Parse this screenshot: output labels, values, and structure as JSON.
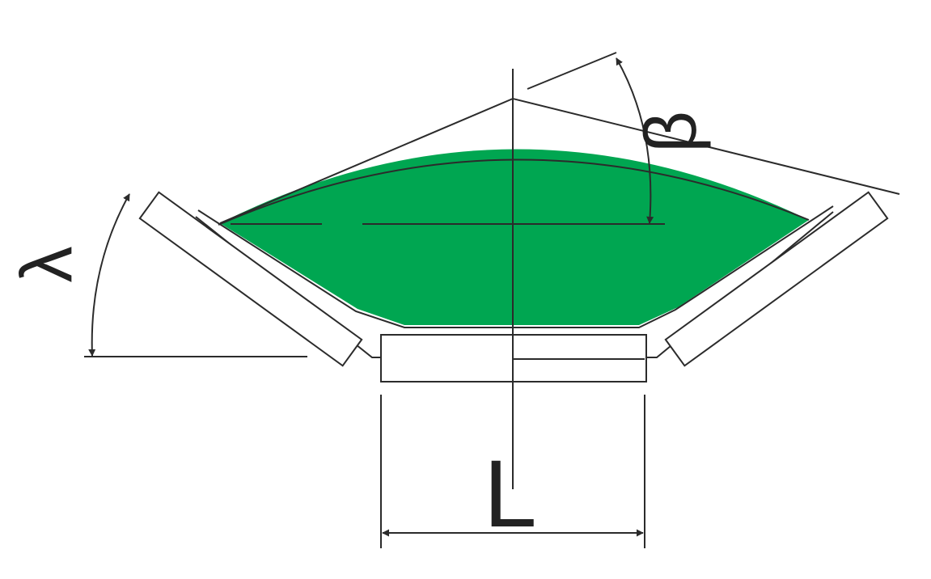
{
  "labels": {
    "width": "L",
    "surcharge_angle": "β",
    "trough_angle": "λ"
  },
  "colors": {
    "material": "#00a651",
    "line": "#2b2b2b",
    "background": "#ffffff"
  }
}
